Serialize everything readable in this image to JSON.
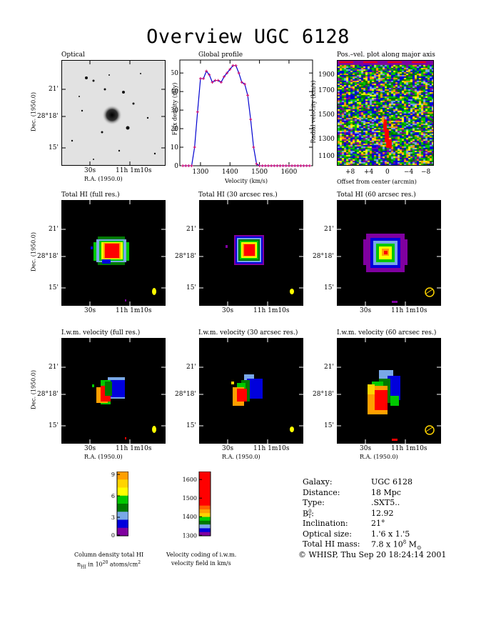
{
  "title": "Overview UGC 6128",
  "panels": {
    "optical": "Optical",
    "global_profile": "Global profile",
    "pv_plot": "Pos.–vel. plot along major axis",
    "total_full": "Total HI (full res.)",
    "total_30": "Total HI (30 arcsec res.)",
    "total_60": "Total HI (60 arcsec res.)",
    "vel_full": "I.w.m. velocity (full res.)",
    "vel_30": "I.w.m. velocity (30 arcsec res.)",
    "vel_60": "I.w.m. velocity (60 arcsec res.)"
  },
  "axes": {
    "dec_label": "Dec. (1950.0)",
    "ra_label": "R.A. (1950.0)",
    "dec_ticks": [
      "21'",
      "28°18'",
      "15'"
    ],
    "ra_tick_left": "30s",
    "ra_tick_right": "11h 1m10s",
    "flux_label": "Flux density (mJy)",
    "velocity_label": "Velocity (km/s)",
    "radial_label": "Radial velocity (km/s)",
    "offset_label": "Offset from center (arcmin)"
  },
  "chart_data": [
    {
      "type": "line",
      "title": "Global profile",
      "xlabel": "Velocity (km/s)",
      "ylabel": "Flux density (mJy)",
      "xlim": [
        1230,
        1680
      ],
      "ylim": [
        0,
        57
      ],
      "xticks": [
        1300,
        1400,
        1500,
        1600
      ],
      "yticks": [
        0,
        10,
        20,
        30,
        40,
        50
      ],
      "x": [
        1240,
        1250,
        1260,
        1270,
        1280,
        1290,
        1300,
        1310,
        1320,
        1330,
        1340,
        1350,
        1360,
        1370,
        1380,
        1390,
        1400,
        1410,
        1420,
        1430,
        1440,
        1450,
        1460,
        1470,
        1480,
        1490,
        1500,
        1510,
        1520,
        1530,
        1540,
        1550,
        1560,
        1570,
        1580,
        1590,
        1600,
        1610,
        1620,
        1630,
        1640,
        1650,
        1660,
        1670
      ],
      "y": [
        0,
        0,
        0,
        0,
        10,
        29,
        47,
        47,
        51,
        49,
        45,
        46,
        46,
        45,
        48,
        50,
        52,
        54,
        54,
        50,
        45,
        44,
        38,
        25,
        10,
        1,
        0,
        0,
        0,
        0,
        0,
        0,
        0,
        0,
        0,
        0,
        0,
        0,
        0,
        0,
        0,
        0,
        0,
        0
      ]
    },
    {
      "type": "heatmap",
      "title": "Pos.–vel. plot along major axis",
      "xlabel": "Offset from center (arcmin)",
      "ylabel": "Radial velocity (km/s)",
      "xticks": [
        "+8",
        "+4",
        "0",
        "−4",
        "−8"
      ],
      "yticks": [
        1100,
        1300,
        1500,
        1700,
        1900
      ]
    }
  ],
  "colorbars": {
    "column": {
      "ticks": [
        "9",
        "6",
        "3",
        "0"
      ],
      "caption1": "Column density total HI",
      "caption2": "n",
      "caption2_sub": "HI",
      "caption2_rest": " in 10",
      "caption2_sup": "20",
      "caption2_end": " atoms/cm",
      "caption2_sup2": "2",
      "colors": [
        "#ff9f00",
        "#ffd400",
        "#ffff00",
        "#00c800",
        "#007800",
        "#79a8e8",
        "#0000dc",
        "#8000a0"
      ]
    },
    "velocity": {
      "ticks": [
        "1600",
        "1500",
        "1400",
        "1300"
      ],
      "caption1": "Velocity coding of i.w.m.",
      "caption2": "velocity field in km/s",
      "colors": [
        "#ff0000",
        "#ff0000",
        "#ff0000",
        "#ff0000",
        "#ff0000",
        "#ff0000",
        "#ff0000",
        "#ff0000",
        "#ff0000",
        "#ff6000",
        "#ff9f00",
        "#ffd400",
        "#00d000",
        "#007800",
        "#79a8e8",
        "#0000dc",
        "#8000a0"
      ]
    }
  },
  "info": {
    "rows": [
      {
        "label": "Galaxy:",
        "value": "UGC 6128"
      },
      {
        "label": "Distance:",
        "value": "18 Mpc"
      },
      {
        "label": "Type:",
        "value": ".SXT5.."
      },
      {
        "label": "B",
        "label_sup": "0",
        "label_sub": "T",
        "label_end": ":",
        "value": "12.92"
      },
      {
        "label": "Inclination:",
        "value": "21°"
      },
      {
        "label": "Optical size:",
        "value": "1.'6 x 1.'5"
      },
      {
        "label": "Total HI mass:",
        "value": "7.8 x 10",
        "value_sup": "8",
        "value_end": " M",
        "value_sub": "⊙"
      }
    ],
    "footer": "© WHISP, Thu Sep 20 18:24:14 2001"
  },
  "colors": {
    "profile_line": "#0000d0",
    "profile_marker": "#d0006a"
  }
}
